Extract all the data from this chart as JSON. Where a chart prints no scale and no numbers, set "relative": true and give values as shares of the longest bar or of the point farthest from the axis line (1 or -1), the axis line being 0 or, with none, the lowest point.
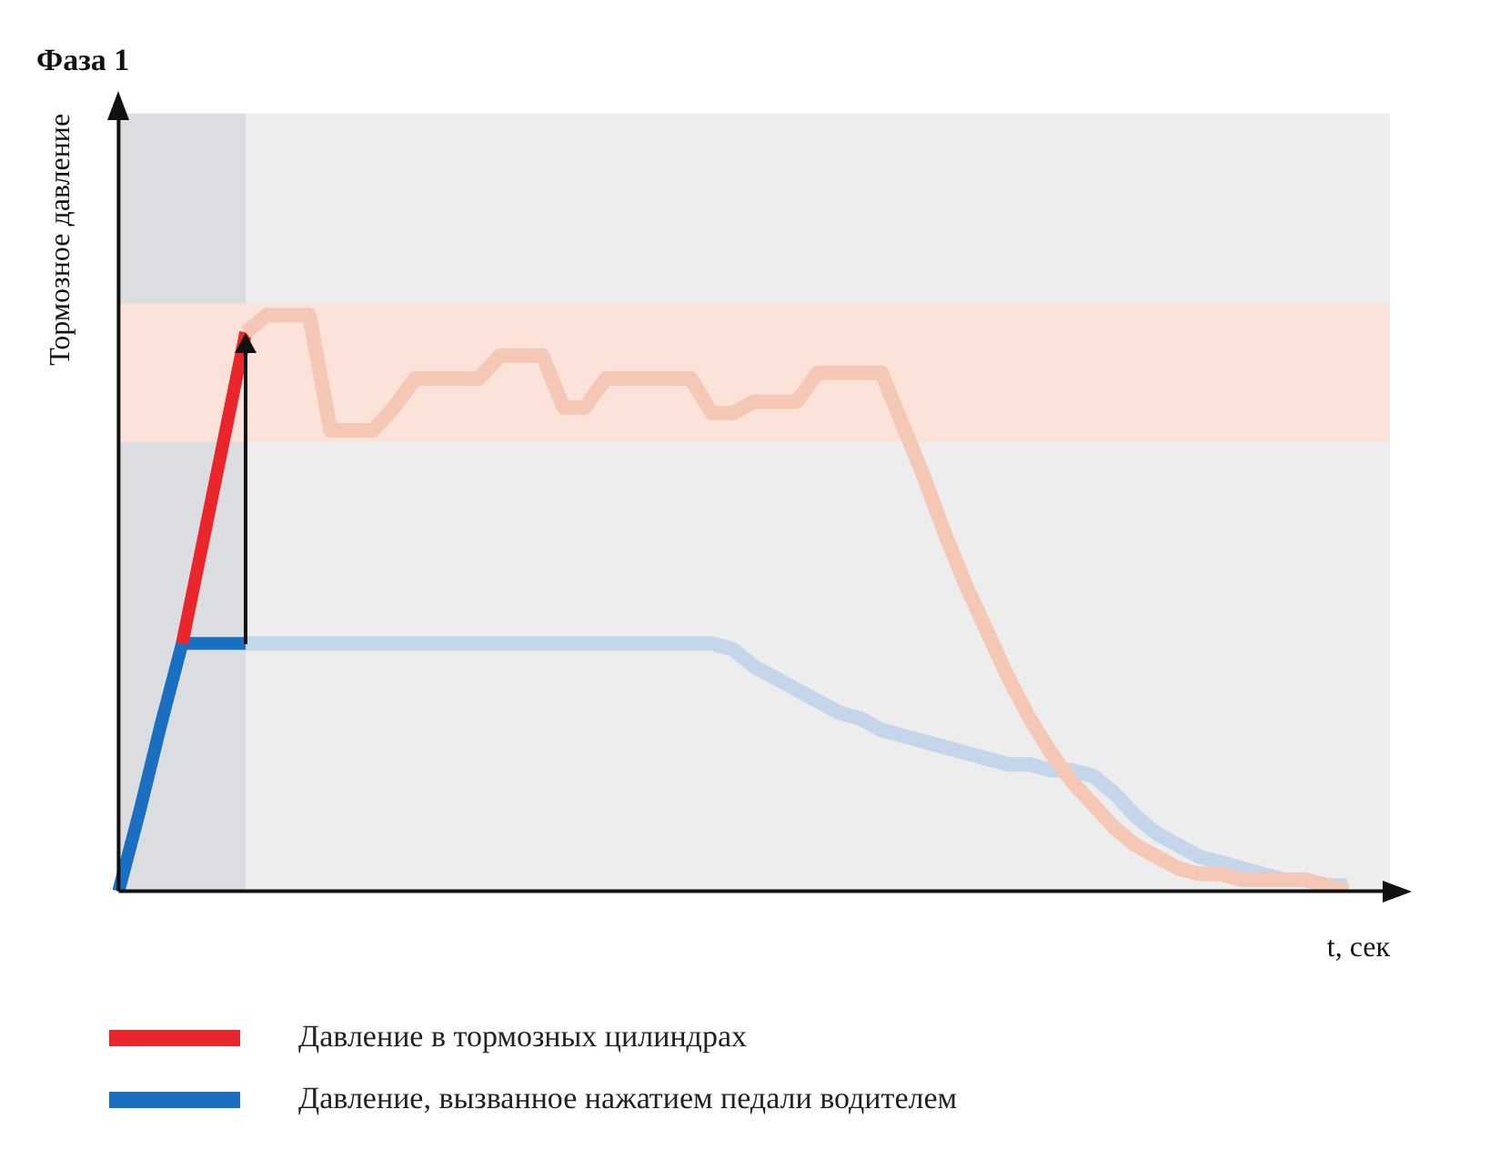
{
  "chart_data": {
    "type": "line",
    "relative": true,
    "title": "Фаза 1",
    "ylabel": "Тормозное давление",
    "xlabel": "t, сек",
    "legend": "bottom",
    "categories": [
      null,
      null,
      null,
      null,
      null,
      null,
      null,
      null,
      null,
      null,
      null,
      null,
      null,
      null,
      null,
      null,
      null,
      null,
      null,
      null,
      null,
      null,
      null,
      null,
      null,
      null,
      null,
      null,
      null,
      null,
      null,
      null,
      null,
      null,
      null,
      null,
      null,
      null,
      null,
      null,
      null,
      null,
      null,
      null,
      null,
      null,
      null,
      null,
      null,
      null,
      null,
      null,
      null,
      null,
      null,
      null,
      null,
      null,
      null,
      null,
      null
    ],
    "bands": [
      {
        "axis": "y",
        "from": 0.78,
        "to": 1.02,
        "color": "#fbe3da"
      }
    ],
    "series": [
      {
        "color": "#f5c8b6",
        "values": [
          null,
          null,
          null,
          null,
          null,
          null,
          0.97,
          1,
          1,
          1,
          0.8,
          0.8,
          0.8,
          0.84,
          0.89,
          0.89,
          0.89,
          0.89,
          0.93,
          0.93,
          0.93,
          0.84,
          0.84,
          0.89,
          0.89,
          0.89,
          0.89,
          0.89,
          0.83,
          0.83,
          0.85,
          0.85,
          0.85,
          0.9,
          0.9,
          0.9,
          0.9,
          0.81,
          0.72,
          0.62,
          0.53,
          0.45,
          0.37,
          0.3,
          0.24,
          0.19,
          0.15,
          0.11,
          0.08,
          0.06,
          0.04,
          0.03,
          0.03,
          0.02,
          0.02,
          0.02,
          0.02,
          0.01,
          0,
          null,
          null
        ]
      },
      {
        "color": "#c6d6ea",
        "values": [
          null,
          null,
          null,
          null,
          null,
          null,
          0.43,
          0.43,
          0.43,
          0.43,
          0.43,
          0.43,
          0.43,
          0.43,
          0.43,
          0.43,
          0.43,
          0.43,
          0.43,
          0.43,
          0.43,
          0.43,
          0.43,
          0.43,
          0.43,
          0.43,
          0.43,
          0.43,
          0.43,
          0.42,
          0.39,
          0.37,
          0.35,
          0.33,
          0.31,
          0.3,
          0.28,
          0.27,
          0.26,
          0.25,
          0.24,
          0.23,
          0.22,
          0.22,
          0.21,
          0.21,
          0.2,
          0.17,
          0.13,
          0.1,
          0.08,
          0.06,
          0.05,
          0.04,
          0.03,
          0.02,
          0.02,
          0.01,
          0.01,
          null,
          null
        ]
      },
      {
        "name": "Давление в тормозных цилиндрах",
        "color": "#e8262b",
        "values": [
          null,
          null,
          null,
          0.43,
          0.61,
          0.79,
          0.97,
          null,
          null,
          null,
          null,
          null,
          null,
          null,
          null,
          null,
          null,
          null,
          null,
          null,
          null,
          null,
          null,
          null,
          null,
          null,
          null,
          null,
          null,
          null,
          null,
          null,
          null,
          null,
          null,
          null,
          null,
          null,
          null,
          null,
          null,
          null,
          null,
          null,
          null,
          null,
          null,
          null,
          null,
          null,
          null,
          null,
          null,
          null,
          null,
          null,
          null,
          null,
          null,
          null,
          null
        ]
      },
      {
        "name": "Давление, вызванное нажатием педали водителем",
        "color": "#1a6fc0",
        "values": [
          0,
          0.14,
          0.29,
          0.43,
          0.43,
          0.43,
          0.43,
          null,
          null,
          null,
          null,
          null,
          null,
          null,
          null,
          null,
          null,
          null,
          null,
          null,
          null,
          null,
          null,
          null,
          null,
          null,
          null,
          null,
          null,
          null,
          null,
          null,
          null,
          null,
          null,
          null,
          null,
          null,
          null,
          null,
          null,
          null,
          null,
          null,
          null,
          null,
          null,
          null,
          null,
          null,
          null,
          null,
          null,
          null,
          null,
          null,
          null,
          null,
          null,
          null,
          null
        ]
      }
    ]
  }
}
